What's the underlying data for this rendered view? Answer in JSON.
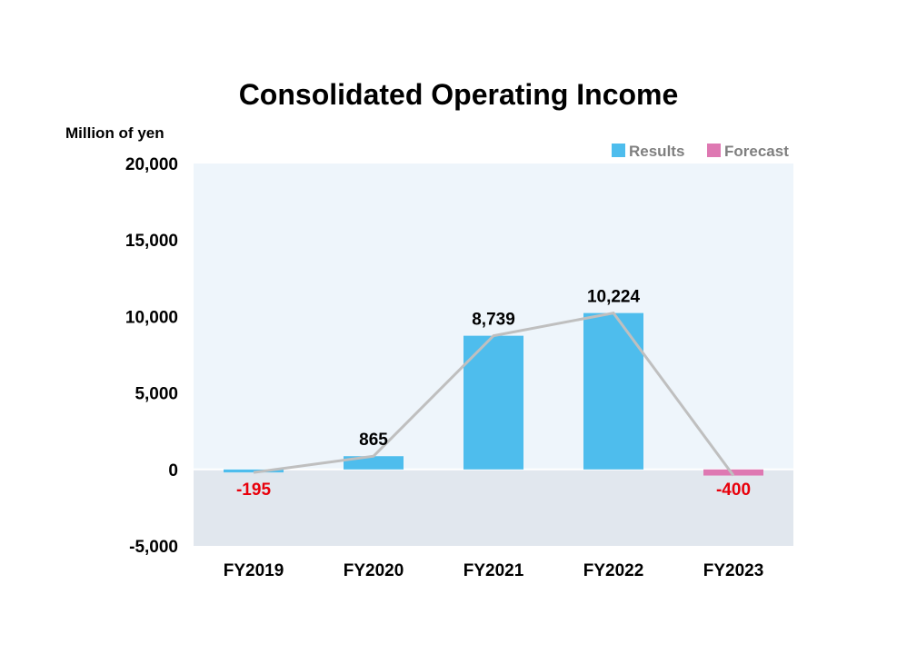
{
  "chart_data": {
    "type": "bar",
    "title": "Consolidated Operating Income",
    "ylabel": "Million of yen",
    "categories": [
      "FY2019",
      "FY2020",
      "FY2021",
      "FY2022",
      "FY2023"
    ],
    "values": [
      -195,
      865,
      8739,
      10224,
      -400
    ],
    "value_labels": [
      "-195",
      "865",
      "8,739",
      "10,224",
      "-400"
    ],
    "bar_kind": [
      "Results",
      "Results",
      "Results",
      "Results",
      "Forecast"
    ],
    "ylim": [
      -5000,
      20000
    ],
    "yticks": [
      20000,
      15000,
      10000,
      5000,
      0,
      -5000
    ],
    "ytick_labels": [
      "20,000",
      "15,000",
      "10,000",
      "5,000",
      "0",
      "-5,000"
    ],
    "legend": [
      {
        "name": "Results",
        "color": "#4ebded"
      },
      {
        "name": "Forecast",
        "color": "#de78b2"
      }
    ],
    "legend_position": "top-right",
    "trend_line": true,
    "colors": {
      "results": "#4ebded",
      "forecast": "#de78b2",
      "trend_line": "#bfbfbf",
      "positive_bg": "#eef5fb",
      "negative_bg": "#e1e7ee",
      "negative_label": "#e8000b",
      "positive_label": "#000000"
    }
  }
}
